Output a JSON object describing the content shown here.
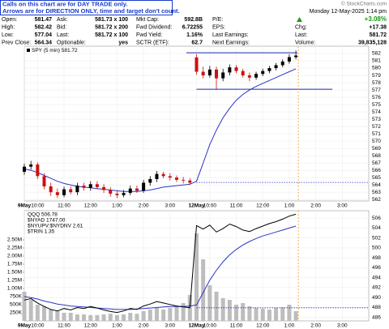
{
  "notice": [
    "Calls on this chart are for DAY TRADE only.",
    "Arrows are for DIRECTION ONLY, time and target don't count."
  ],
  "credit": "© StockCharts.com",
  "quote": {
    "columns": [
      [
        [
          "Open:",
          581.47
        ],
        [
          "High:",
          582.42
        ],
        [
          "Low:",
          577.04
        ],
        [
          "Prev Close:",
          564.34
        ]
      ],
      [
        [
          "Ask:",
          "581.73 x 100"
        ],
        [
          "Bid:",
          "581.72 x 200"
        ],
        [
          "Last:",
          "581.72 x 100"
        ],
        [
          "Optionable:",
          "yes"
        ]
      ],
      [
        [
          "Mkt Cap:",
          "592.8B"
        ],
        [
          "Fwd Dividend:",
          6.72255
        ],
        [
          "Fwd Yield:",
          "1.16%"
        ],
        [
          "SCTR (ETF):",
          62.7
        ]
      ]
    ],
    "labels": [
      "P/E:",
      "EPS:",
      "Last Earnings:",
      "Next Earnings:"
    ],
    "date": "Monday 12-May-2025 1:14 pm",
    "change_pct": "+3.08%",
    "rows": [
      [
        "Chg:",
        "+17.38"
      ],
      [
        "Last:",
        581.72
      ],
      [
        "Volume:",
        "39,835,128"
      ]
    ]
  },
  "chart_data": [
    {
      "type": "candlestick",
      "legend": "SPY (5 min) 581.72",
      "grid": true,
      "x": [
        0,
        3,
        6,
        9,
        12,
        15,
        18,
        21,
        24,
        27,
        30,
        33,
        36,
        39,
        42,
        45,
        48,
        51,
        54,
        57,
        60,
        63,
        66,
        69,
        72,
        75,
        78,
        81,
        84,
        87,
        90,
        93,
        96,
        99,
        102,
        105,
        108,
        111,
        114,
        117,
        120,
        123
      ],
      "open": [
        565.8,
        566.5,
        566.8,
        565.2,
        563.8,
        563.0,
        562.6,
        563.4,
        563.0,
        563.9,
        563.6,
        564.1,
        563.7,
        563.3,
        562.8,
        562.6,
        562.9,
        563.5,
        563.2,
        564.3,
        564.8,
        565.5,
        565.2,
        565.0,
        564.7,
        564.6,
        581.47,
        579.5,
        579.0,
        579.8,
        578.6,
        579.4,
        580.1,
        579.6,
        579.0,
        578.7,
        579.2,
        579.6,
        580.0,
        580.4,
        580.9,
        581.5
      ],
      "high": [
        566.9,
        567.3,
        567.1,
        565.6,
        564.3,
        563.5,
        563.8,
        563.8,
        564.3,
        564.3,
        564.5,
        564.5,
        564.1,
        563.7,
        563.2,
        563.3,
        563.9,
        563.9,
        564.7,
        565.2,
        565.9,
        565.8,
        565.6,
        565.3,
        565.1,
        564.9,
        581.9,
        580.2,
        580.3,
        580.2,
        579.9,
        580.5,
        580.4,
        579.9,
        579.4,
        579.5,
        579.9,
        580.3,
        580.7,
        581.2,
        581.9,
        582.42
      ],
      "low": [
        565.4,
        566.1,
        564.8,
        563.4,
        562.5,
        562.2,
        562.3,
        562.7,
        562.6,
        563.2,
        563.2,
        563.4,
        562.9,
        562.4,
        562.2,
        562.3,
        562.6,
        562.9,
        562.9,
        563.9,
        564.4,
        564.9,
        564.6,
        564.4,
        564.2,
        564.0,
        579.1,
        578.6,
        578.7,
        577.04,
        578.2,
        579.0,
        579.3,
        578.7,
        578.2,
        578.4,
        578.9,
        579.3,
        579.7,
        580.1,
        580.6,
        581.2
      ],
      "close": [
        566.5,
        566.8,
        565.2,
        563.8,
        563.0,
        562.6,
        563.4,
        563.0,
        563.9,
        563.6,
        564.1,
        563.7,
        563.3,
        562.8,
        562.6,
        562.9,
        563.5,
        563.2,
        564.3,
        564.8,
        565.5,
        565.2,
        565.0,
        564.7,
        564.6,
        564.3,
        579.5,
        579.0,
        579.8,
        578.6,
        579.4,
        580.1,
        579.6,
        579.0,
        578.7,
        579.2,
        579.6,
        580.0,
        580.4,
        580.9,
        581.5,
        581.72
      ],
      "up_color": "#000000",
      "down_color": "#cc1111",
      "series": [
        {
          "color": "#2b35c4",
          "values": [
            566.2,
            566.0,
            565.7,
            565.3,
            564.9,
            564.5,
            564.2,
            564.0,
            563.8,
            563.7,
            563.6,
            563.5,
            563.4,
            563.3,
            563.2,
            563.1,
            563.1,
            563.1,
            563.2,
            563.3,
            563.5,
            563.7,
            563.8,
            563.9,
            564.0,
            564.1,
            564.5,
            567.0,
            569.5,
            571.5,
            573.2,
            574.5,
            575.6,
            576.4,
            577.0,
            577.5,
            577.9,
            578.3,
            578.7,
            579.1,
            579.5,
            579.9
          ]
        }
      ],
      "hlines": [
        582.1,
        577.1
      ],
      "xlim": [
        0,
        156
      ],
      "xticks": [
        {
          "value": 0,
          "label": "9May"
        },
        {
          "value": 6,
          "label": "10:00"
        },
        {
          "value": 18,
          "label": "11:00"
        },
        {
          "value": 30,
          "label": "12:00"
        },
        {
          "value": 42,
          "label": "1:00"
        },
        {
          "value": 54,
          "label": "2:00"
        },
        {
          "value": 66,
          "label": "3:00"
        },
        {
          "value": 78,
          "label": "12May"
        },
        {
          "value": 84,
          "label": "10:00"
        },
        {
          "value": 96,
          "label": "11:00"
        },
        {
          "value": 108,
          "label": "12:00"
        },
        {
          "value": 120,
          "label": "1:00"
        },
        {
          "value": 132,
          "label": "2:00"
        },
        {
          "value": 144,
          "label": "3:00"
        }
      ],
      "ylim": [
        561.8,
        583
      ],
      "yticks": [
        562,
        563,
        564,
        565,
        566,
        567,
        568,
        569,
        570,
        571,
        572,
        573,
        574,
        575,
        576,
        577,
        578,
        579,
        580,
        581,
        582
      ]
    },
    {
      "type": "line",
      "legend": [
        "QQQ 506.78",
        "$NYAD 1747.00",
        "$NYUPV:$NYDNV 2.61",
        "$TRIN 1.35"
      ],
      "grid": true,
      "x": [
        0,
        3,
        6,
        9,
        12,
        15,
        18,
        21,
        24,
        27,
        30,
        33,
        36,
        39,
        42,
        45,
        48,
        51,
        54,
        57,
        60,
        63,
        66,
        69,
        72,
        75,
        78,
        81,
        84,
        87,
        90,
        93,
        96,
        99,
        102,
        105,
        108,
        111,
        114,
        117,
        120,
        123
      ],
      "series": [
        {
          "kind": "bar",
          "axis": "y2",
          "color": "#bdbdbd",
          "values": [
            900000,
            650000,
            500000,
            450000,
            350000,
            300000,
            250000,
            250000,
            200000,
            200000,
            180000,
            180000,
            200000,
            220000,
            180000,
            200000,
            250000,
            220000,
            300000,
            350000,
            400000,
            350000,
            400000,
            450000,
            550000,
            800000,
            2700000,
            1900000,
            1100000,
            900000,
            700000,
            650000,
            500000,
            550000,
            450000,
            400000,
            380000,
            350000,
            400000,
            420000,
            500000,
            300000
          ]
        },
        {
          "kind": "line",
          "color": "#2b35c4",
          "values": [
            490.2,
            490.0,
            489.7,
            489.3,
            489.0,
            488.7,
            488.5,
            488.3,
            488.2,
            488.1,
            488.0,
            487.9,
            487.8,
            487.7,
            487.6,
            487.6,
            487.6,
            487.7,
            487.8,
            487.9,
            488.0,
            488.1,
            488.2,
            488.2,
            488.2,
            488.3,
            488.5,
            491.0,
            493.5,
            495.5,
            497.2,
            498.6,
            499.7,
            500.6,
            501.3,
            501.9,
            502.4,
            502.8,
            503.2,
            503.6,
            504.0,
            504.4
          ]
        },
        {
          "kind": "line",
          "color": "#000000",
          "values": [
            489.5,
            489.8,
            488.9,
            488.2,
            487.6,
            487.3,
            487.8,
            487.5,
            488.0,
            487.8,
            488.2,
            487.9,
            487.5,
            487.2,
            487.0,
            487.3,
            487.8,
            487.6,
            488.3,
            488.7,
            489.2,
            488.9,
            488.6,
            488.3,
            488.1,
            487.94,
            504.5,
            503.8,
            504.6,
            503.2,
            503.9,
            504.8,
            504.3,
            503.6,
            503.3,
            503.9,
            504.4,
            504.9,
            505.3,
            505.8,
            506.4,
            506.78
          ]
        }
      ],
      "xlim": [
        0,
        156
      ],
      "xticks": [
        {
          "value": 0,
          "label": "9May"
        },
        {
          "value": 6,
          "label": "10:00"
        },
        {
          "value": 18,
          "label": "11:00"
        },
        {
          "value": 30,
          "label": "12:00"
        },
        {
          "value": 42,
          "label": "1:00"
        },
        {
          "value": 54,
          "label": "2:00"
        },
        {
          "value": 66,
          "label": "3:00"
        },
        {
          "value": 78,
          "label": "12May"
        },
        {
          "value": 84,
          "label": "10:00"
        },
        {
          "value": 96,
          "label": "11:00"
        },
        {
          "value": 108,
          "label": "12:00"
        },
        {
          "value": 120,
          "label": "1:00"
        },
        {
          "value": 132,
          "label": "2:00"
        },
        {
          "value": 144,
          "label": "3:00"
        }
      ],
      "ylim": [
        485.3,
        507.5
      ],
      "yticks": [
        486,
        488,
        490,
        492,
        494,
        496,
        498,
        500,
        502,
        504,
        506
      ],
      "y2lim": [
        0,
        3400000
      ],
      "y2ticks": [
        {
          "value": 250000,
          "label": "250K"
        },
        {
          "value": 500000,
          "label": "500K"
        },
        {
          "value": 750000,
          "label": "750K"
        },
        {
          "value": 1000000,
          "label": "1.00M"
        },
        {
          "value": 1250000,
          "label": "1.25M"
        },
        {
          "value": 1500000,
          "label": "1.50M"
        },
        {
          "value": 1750000,
          "label": "1.75M"
        },
        {
          "value": 2000000,
          "label": "2.00M"
        },
        {
          "value": 2250000,
          "label": "2.25M"
        },
        {
          "value": 2500000,
          "label": "2.50M"
        }
      ]
    }
  ]
}
